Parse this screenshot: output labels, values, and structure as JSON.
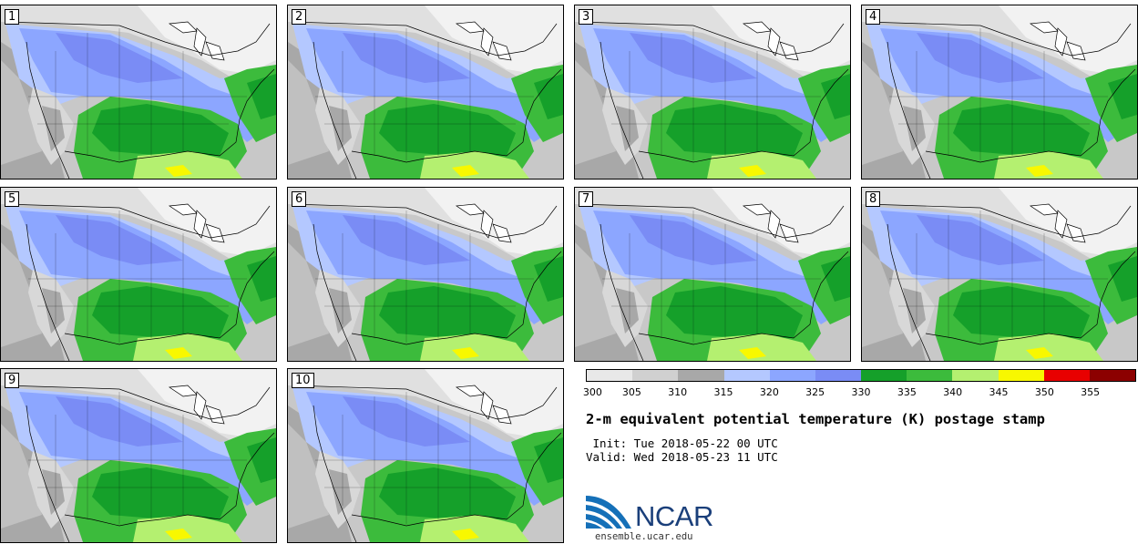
{
  "panels": [
    {
      "label": "1"
    },
    {
      "label": "2"
    },
    {
      "label": "3"
    },
    {
      "label": "4"
    },
    {
      "label": "5"
    },
    {
      "label": "6"
    },
    {
      "label": "7"
    },
    {
      "label": "8"
    },
    {
      "label": "9"
    },
    {
      "label": "10"
    }
  ],
  "colorbar": {
    "colors": [
      "#e8e8e8",
      "#d0d0d0",
      "#a8a8a8",
      "#b4c8ff",
      "#8ca6ff",
      "#7a8cf5",
      "#15a02a",
      "#3cbb3c",
      "#b4f070",
      "#f8f800",
      "#e80000",
      "#8c0000"
    ],
    "tick_labels": [
      "300",
      "305",
      "310",
      "315",
      "320",
      "325",
      "330",
      "335",
      "340",
      "345",
      "350",
      "355"
    ]
  },
  "title": "2-m equivalent potential temperature (K) postage stamp",
  "init": " Init: Tue 2018-05-22 00 UTC",
  "valid": "Valid: Wed 2018-05-23 11 UTC",
  "logo": {
    "text": "NCAR",
    "site": "ensemble.ucar.edu"
  }
}
